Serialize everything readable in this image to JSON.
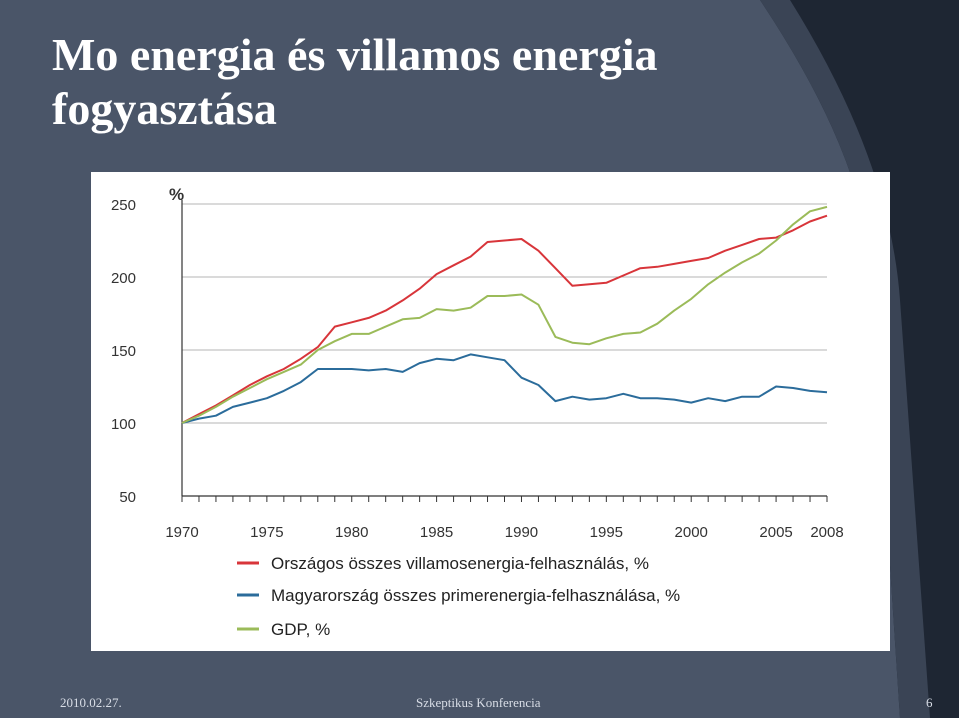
{
  "slide": {
    "title": "Mo energia és villamos energia fogyasztása",
    "footer_date": "2010.02.27.",
    "footer_center": "Szkeptikus Konferencia",
    "page_number": "6"
  },
  "colors": {
    "background_dark": "#1e2633",
    "background_slate": "#4a5568",
    "red": "#d8353a",
    "blue": "#2b6c9b",
    "green": "#9bbb59"
  },
  "chart_data": {
    "type": "line",
    "title": "",
    "ylabel": "%",
    "xlabel": "",
    "ylim": [
      50,
      250
    ],
    "xlim": [
      1970,
      2008
    ],
    "yticks": [
      250,
      200,
      150,
      100,
      50
    ],
    "xticks": [
      1970,
      1975,
      1980,
      1985,
      1990,
      1995,
      2000,
      2005,
      2008
    ],
    "grid": "horizontal",
    "legend_position": "bottom",
    "series": [
      {
        "name": "Országos összes villamosenergia-felhasználás, %",
        "color": "#d8353a",
        "x": [
          1970,
          1971,
          1972,
          1973,
          1974,
          1975,
          1976,
          1977,
          1978,
          1979,
          1980,
          1981,
          1982,
          1983,
          1984,
          1985,
          1986,
          1987,
          1988,
          1989,
          1990,
          1991,
          1992,
          1993,
          1994,
          1995,
          1996,
          1997,
          1998,
          1999,
          2000,
          2001,
          2002,
          2003,
          2004,
          2005,
          2006,
          2007,
          2008
        ],
        "values": [
          100,
          106,
          112,
          119,
          126,
          132,
          137,
          144,
          152,
          166,
          169,
          172,
          177,
          184,
          192,
          202,
          208,
          214,
          224,
          225,
          226,
          218,
          206,
          194,
          195,
          196,
          201,
          206,
          207,
          209,
          211,
          213,
          218,
          222,
          226,
          227,
          232,
          238,
          242
        ]
      },
      {
        "name": "Magyarország összes primerenergia-felhasználása, %",
        "color": "#2b6c9b",
        "x": [
          1970,
          1971,
          1972,
          1973,
          1974,
          1975,
          1976,
          1977,
          1978,
          1979,
          1980,
          1981,
          1982,
          1983,
          1984,
          1985,
          1986,
          1987,
          1988,
          1989,
          1990,
          1991,
          1992,
          1993,
          1994,
          1995,
          1996,
          1997,
          1998,
          1999,
          2000,
          2001,
          2002,
          2003,
          2004,
          2005,
          2006,
          2007,
          2008
        ],
        "values": [
          100,
          103,
          105,
          111,
          114,
          117,
          122,
          128,
          137,
          137,
          137,
          136,
          137,
          135,
          141,
          144,
          143,
          147,
          145,
          143,
          131,
          126,
          115,
          118,
          116,
          117,
          120,
          117,
          117,
          116,
          114,
          117,
          115,
          118,
          118,
          125,
          124,
          122,
          121
        ]
      },
      {
        "name": "GDP, %",
        "color": "#9bbb59",
        "x": [
          1970,
          1971,
          1972,
          1973,
          1974,
          1975,
          1976,
          1977,
          1978,
          1979,
          1980,
          1981,
          1982,
          1983,
          1984,
          1985,
          1986,
          1987,
          1988,
          1989,
          1990,
          1991,
          1992,
          1993,
          1994,
          1995,
          1996,
          1997,
          1998,
          1999,
          2000,
          2001,
          2002,
          2003,
          2004,
          2005,
          2006,
          2007,
          2008
        ],
        "values": [
          100,
          105,
          111,
          118,
          124,
          130,
          135,
          140,
          150,
          156,
          161,
          161,
          166,
          171,
          172,
          178,
          177,
          179,
          187,
          187,
          188,
          181,
          159,
          155,
          154,
          158,
          161,
          162,
          168,
          177,
          185,
          195,
          203,
          210,
          216,
          225,
          236,
          245,
          248
        ]
      }
    ]
  }
}
